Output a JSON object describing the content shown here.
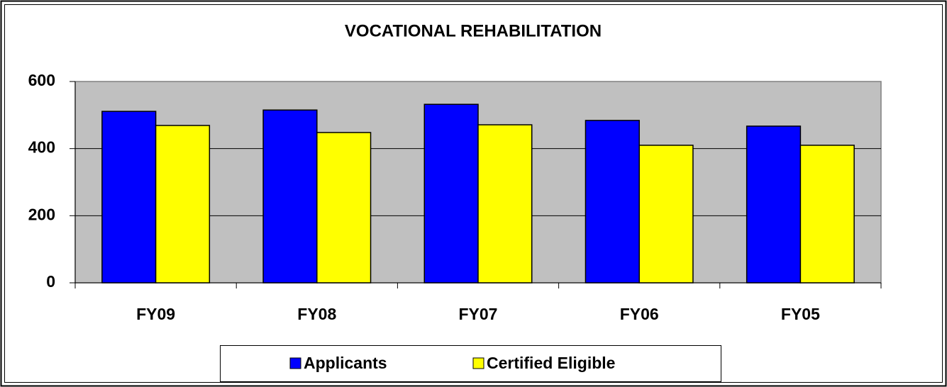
{
  "chart_data": {
    "type": "bar",
    "title": "VOCATIONAL REHABILITATION",
    "categories": [
      "FY09",
      "FY08",
      "FY07",
      "FY06",
      "FY05"
    ],
    "series": [
      {
        "name": "Applicants",
        "color": "#0000ff",
        "values": [
          511,
          515,
          532,
          484,
          467
        ]
      },
      {
        "name": "Certified Eligible",
        "color": "#ffff00",
        "values": [
          469,
          448,
          471,
          410,
          410
        ]
      }
    ],
    "ylim": [
      0,
      600
    ],
    "yticks": [
      0,
      200,
      400,
      600
    ],
    "grid": true,
    "legend": "bottom"
  }
}
